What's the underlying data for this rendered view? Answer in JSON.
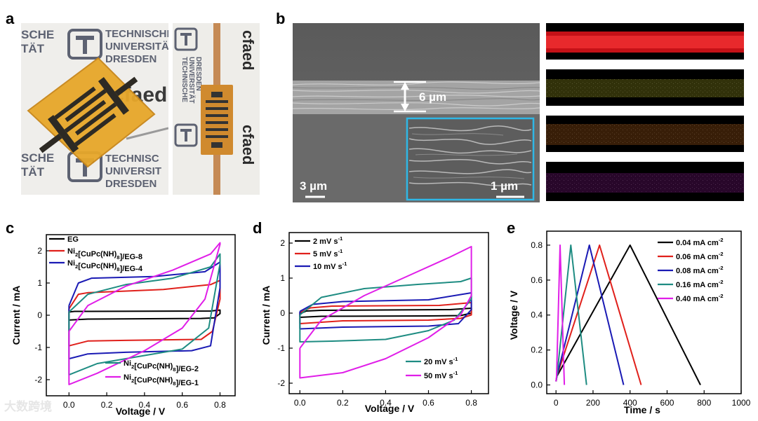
{
  "panel_labels": {
    "a": "a",
    "b": "b",
    "c": "c",
    "d": "d",
    "e": "e"
  },
  "panel_a": {
    "logo_left_lines": [
      "SCHE",
      "TÄT",
      "TECHNISCHE",
      "UNIVERSITÄT",
      "DRESDEN",
      "SCHE",
      "TÄT",
      "TECHNISC",
      "UNIVERSIT",
      "DRESDEN"
    ],
    "cfaed_text": "cfaed",
    "vertical_text": [
      "TECHNISCHE",
      "UNIVERSITÄT",
      "DRESDEN"
    ]
  },
  "panel_b": {
    "thickness_label": "6 µm",
    "scale_main": "3 µm",
    "scale_inset": "1 µm",
    "edx_colors": [
      "#e8141b",
      "#d9d62a",
      "#e0781e",
      "#a21aa8"
    ]
  },
  "chart_data": [
    {
      "id": "c",
      "type": "line",
      "xlabel": "Voltage / V",
      "ylabel": "Current / mA",
      "xlim": [
        -0.12,
        0.88
      ],
      "ylim": [
        -2.5,
        2.5
      ],
      "xticks": [
        "0.0",
        "0.2",
        "0.4",
        "0.6",
        "0.8"
      ],
      "yticks": [
        "-2",
        "-1",
        "0",
        "1",
        "2"
      ],
      "series": [
        {
          "name": "EG",
          "color": "#000000",
          "upper": [
            [
              0,
              0.1
            ],
            [
              0.03,
              0.12
            ],
            [
              0.1,
              0.12
            ],
            [
              0.75,
              0.13
            ],
            [
              0.8,
              0.16
            ]
          ],
          "lower": [
            [
              0.8,
              0.05
            ],
            [
              0.77,
              -0.08
            ],
            [
              0.7,
              -0.1
            ],
            [
              0.1,
              -0.12
            ],
            [
              0,
              -0.15
            ]
          ]
        },
        {
          "name": "Ni<sub>2</sub>[CuPc(NH)<sub>8</sub>]/EG-8",
          "name_text": "Ni2[CuPc(NH)8]/EG-8",
          "color": "#e0201b",
          "upper": [
            [
              0,
              0.2
            ],
            [
              0.05,
              0.65
            ],
            [
              0.1,
              0.7
            ],
            [
              0.5,
              0.8
            ],
            [
              0.75,
              0.95
            ],
            [
              0.8,
              1.08
            ]
          ],
          "lower": [
            [
              0.8,
              0.5
            ],
            [
              0.76,
              -0.5
            ],
            [
              0.7,
              -0.75
            ],
            [
              0.3,
              -0.78
            ],
            [
              0.1,
              -0.8
            ],
            [
              0,
              -0.95
            ]
          ]
        },
        {
          "name": "Ni<sub>2</sub>[CuPc(NH)<sub>8</sub>]/EG-4",
          "name_text": "Ni2[CuPc(NH)8]/EG-4",
          "color": "#1a1ab4",
          "upper": [
            [
              0,
              0.3
            ],
            [
              0.05,
              1.0
            ],
            [
              0.12,
              1.15
            ],
            [
              0.45,
              1.2
            ],
            [
              0.72,
              1.35
            ],
            [
              0.8,
              1.65
            ]
          ],
          "lower": [
            [
              0.8,
              0.85
            ],
            [
              0.75,
              -0.95
            ],
            [
              0.65,
              -1.1
            ],
            [
              0.3,
              -1.15
            ],
            [
              0.1,
              -1.2
            ],
            [
              0,
              -1.35
            ]
          ]
        },
        {
          "name": "Ni<sub>2</sub>[CuPc(NH)<sub>8</sub>]/EG-2",
          "name_text": "Ni2[CuPc(NH)8]/EG-2",
          "color": "#1e8c82",
          "upper": [
            [
              0,
              0.1
            ],
            [
              0.1,
              0.65
            ],
            [
              0.3,
              0.95
            ],
            [
              0.55,
              1.15
            ],
            [
              0.75,
              1.5
            ],
            [
              0.8,
              1.9
            ]
          ],
          "lower": [
            [
              0.8,
              1.6
            ],
            [
              0.74,
              -0.4
            ],
            [
              0.6,
              -1.05
            ],
            [
              0.4,
              -1.25
            ],
            [
              0.15,
              -1.5
            ],
            [
              0,
              -1.85
            ]
          ]
        },
        {
          "name": "Ni<sub>2</sub>[CuPc(NH)<sub>8</sub>]/EG-1",
          "name_text": "Ni2[CuPc(NH)8]/EG-1",
          "color": "#e01ee8",
          "upper": [
            [
              0,
              -0.5
            ],
            [
              0.1,
              0.3
            ],
            [
              0.3,
              0.9
            ],
            [
              0.55,
              1.4
            ],
            [
              0.75,
              1.9
            ],
            [
              0.8,
              2.25
            ]
          ],
          "lower": [
            [
              0.8,
              2.2
            ],
            [
              0.72,
              0.5
            ],
            [
              0.6,
              -0.4
            ],
            [
              0.4,
              -1.1
            ],
            [
              0.15,
              -1.8
            ],
            [
              0,
              -2.15
            ]
          ]
        }
      ]
    },
    {
      "id": "d",
      "type": "line",
      "xlabel": "Voltage / V",
      "ylabel": "Current / mA",
      "xlim": [
        -0.05,
        0.88
      ],
      "ylim": [
        -2.3,
        2.3
      ],
      "xticks": [
        "0.0",
        "0.2",
        "0.4",
        "0.6",
        "0.8"
      ],
      "yticks": [
        "-2",
        "-1",
        "0",
        "1",
        "2"
      ],
      "series": [
        {
          "name": "2 mV s<sup>-1</sup>",
          "name_text": "2 mV s-1",
          "color": "#000000",
          "upper": [
            [
              0,
              -0.02
            ],
            [
              0.03,
              0.06
            ],
            [
              0.1,
              0.08
            ],
            [
              0.7,
              0.1
            ],
            [
              0.8,
              0.14
            ]
          ],
          "lower": [
            [
              0.8,
              0.0
            ],
            [
              0.75,
              -0.07
            ],
            [
              0.6,
              -0.08
            ],
            [
              0.1,
              -0.09
            ],
            [
              0,
              -0.12
            ]
          ]
        },
        {
          "name": "5 mV s<sup>-1</sup>",
          "name_text": "5 mV s-1",
          "color": "#e0201b",
          "upper": [
            [
              0,
              0.02
            ],
            [
              0.05,
              0.15
            ],
            [
              0.15,
              0.2
            ],
            [
              0.65,
              0.22
            ],
            [
              0.8,
              0.3
            ]
          ],
          "lower": [
            [
              0.8,
              -0.05
            ],
            [
              0.75,
              -0.15
            ],
            [
              0.6,
              -0.2
            ],
            [
              0.2,
              -0.22
            ],
            [
              0,
              -0.3
            ]
          ]
        },
        {
          "name": "10 mV s<sup>-1</sup>",
          "name_text": "10 mV s-1",
          "color": "#1a1ab4",
          "upper": [
            [
              0,
              0.05
            ],
            [
              0.06,
              0.25
            ],
            [
              0.2,
              0.33
            ],
            [
              0.6,
              0.38
            ],
            [
              0.8,
              0.58
            ]
          ],
          "lower": [
            [
              0.8,
              0.1
            ],
            [
              0.74,
              -0.3
            ],
            [
              0.6,
              -0.37
            ],
            [
              0.2,
              -0.4
            ],
            [
              0,
              -0.45
            ]
          ]
        },
        {
          "name": "20 mV s<sup>-1</sup>",
          "name_text": "20 mV s-1",
          "color": "#1e8c82",
          "upper": [
            [
              0,
              -0.05
            ],
            [
              0.1,
              0.45
            ],
            [
              0.3,
              0.7
            ],
            [
              0.55,
              0.82
            ],
            [
              0.75,
              0.9
            ],
            [
              0.8,
              1.0
            ]
          ],
          "lower": [
            [
              0.8,
              0.4
            ],
            [
              0.72,
              -0.2
            ],
            [
              0.6,
              -0.5
            ],
            [
              0.4,
              -0.75
            ],
            [
              0.15,
              -0.8
            ],
            [
              0,
              -0.82
            ]
          ]
        },
        {
          "name": "50 mV s<sup>-1</sup>",
          "name_text": "50 mV s-1",
          "color": "#e01ee8",
          "upper": [
            [
              0,
              -1.0
            ],
            [
              0.1,
              -0.2
            ],
            [
              0.3,
              0.5
            ],
            [
              0.5,
              1.05
            ],
            [
              0.7,
              1.6
            ],
            [
              0.8,
              1.9
            ]
          ],
          "lower": [
            [
              0.8,
              0.5
            ],
            [
              0.75,
              -0.05
            ],
            [
              0.6,
              -0.7
            ],
            [
              0.4,
              -1.3
            ],
            [
              0.2,
              -1.7
            ],
            [
              0,
              -1.85
            ]
          ]
        }
      ]
    },
    {
      "id": "e",
      "type": "line",
      "xlabel": "Time / s",
      "ylabel": "Voltage / V",
      "xlim": [
        -50,
        1000
      ],
      "ylim": [
        -0.05,
        0.88
      ],
      "xticks": [
        "0",
        "200",
        "400",
        "600",
        "800",
        "1000"
      ],
      "yticks": [
        "0.0",
        "0.2",
        "0.4",
        "0.6",
        "0.8"
      ],
      "series": [
        {
          "name": "0.04 mA cm<sup>-2</sup>",
          "name_text": "0.04 mA cm-2",
          "color": "#000000",
          "points": [
            [
              0,
              0.02
            ],
            [
              5,
              0.05
            ],
            [
              400,
              0.8
            ],
            [
              780,
              0.0
            ]
          ]
        },
        {
          "name": "0.06 mA cm<sup>-2</sup>",
          "name_text": "0.06 mA cm-2",
          "color": "#e0201b",
          "points": [
            [
              0,
              0.02
            ],
            [
              5,
              0.05
            ],
            [
              235,
              0.8
            ],
            [
              460,
              0.0
            ]
          ]
        },
        {
          "name": "0.08 mA cm<sup>-2</sup>",
          "name_text": "0.08 mA cm-2",
          "color": "#1a1ab4",
          "points": [
            [
              0,
              0.02
            ],
            [
              5,
              0.05
            ],
            [
              180,
              0.8
            ],
            [
              365,
              0.0
            ]
          ]
        },
        {
          "name": "0.16 mA cm<sup>-2</sup>",
          "name_text": "0.16 mA cm-2",
          "color": "#1e8c82",
          "points": [
            [
              0,
              0.02
            ],
            [
              5,
              0.05
            ],
            [
              80,
              0.8
            ],
            [
              165,
              0.0
            ]
          ]
        },
        {
          "name": "0.40 mA cm<sup>-2</sup>",
          "name_text": "0.40 mA cm-2",
          "color": "#e01ee8",
          "points": [
            [
              0,
              0.02
            ],
            [
              3,
              0.05
            ],
            [
              22,
              0.8
            ],
            [
              45,
              0.0
            ]
          ]
        }
      ]
    }
  ],
  "watermark": "大数跨境"
}
